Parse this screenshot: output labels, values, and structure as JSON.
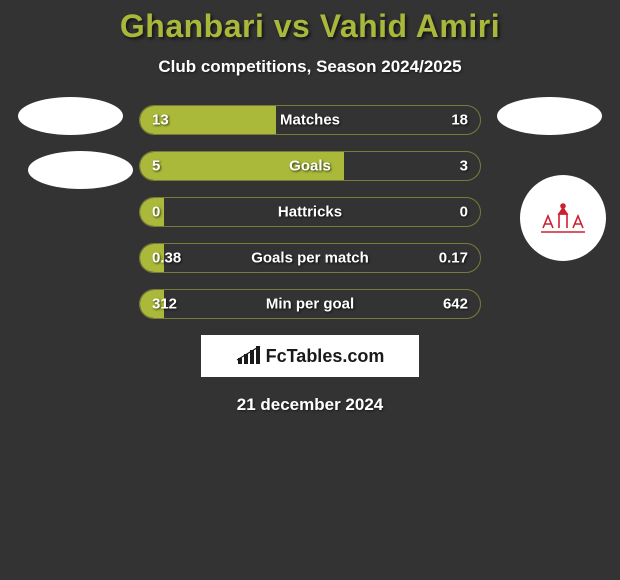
{
  "title": "Ghanbari vs Vahid Amiri",
  "subtitle": "Club competitions, Season 2024/2025",
  "date": "21 december 2024",
  "brand": "FcTables.com",
  "colors": {
    "accent": "#a9b83a",
    "bar_fill": "#aab939",
    "background": "#333333",
    "text": "#ffffff"
  },
  "bars": [
    {
      "label": "Matches",
      "left_val": "13",
      "right_val": "18",
      "left_pct": 40
    },
    {
      "label": "Goals",
      "left_val": "5",
      "right_val": "3",
      "left_pct": 60
    },
    {
      "label": "Hattricks",
      "left_val": "0",
      "right_val": "0",
      "left_pct": 7
    },
    {
      "label": "Goals per match",
      "left_val": "0.38",
      "right_val": "0.17",
      "left_pct": 7
    },
    {
      "label": "Min per goal",
      "left_val": "312",
      "right_val": "642",
      "left_pct": 7
    }
  ]
}
